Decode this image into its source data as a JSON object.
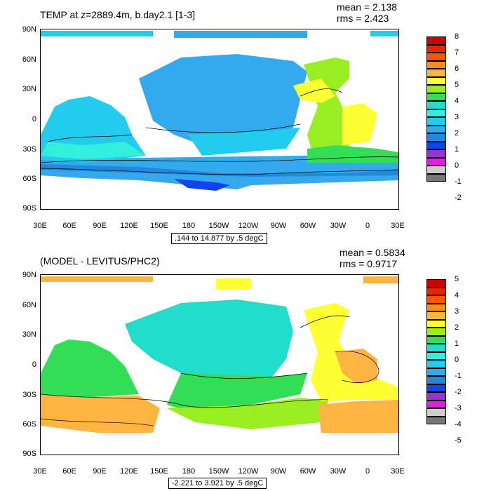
{
  "panels": [
    {
      "title": "TEMP at z=2889.4m, b.day2.1 [1-3]",
      "mean": "mean = 2.138",
      "rms": "rms = 2.423",
      "range_label": ".144 to 14.877 by .5 degC",
      "y_labels": [
        "90N",
        "60N",
        "30N",
        "0",
        "30S",
        "60S",
        "90S"
      ],
      "x_labels": [
        "30E",
        "60E",
        "90E",
        "120E",
        "150E",
        "180",
        "150W",
        "120W",
        "90W",
        "60W",
        "30W",
        "0",
        "30E"
      ],
      "legend_labels": [
        "8",
        "7",
        "6",
        "5",
        "4",
        "3",
        "2",
        "1",
        "0",
        "-1",
        "-2"
      ],
      "legend_colors": [
        "#cc0000",
        "#ee2200",
        "#ff5500",
        "#ff8c1a",
        "#ffb340",
        "#ffff33",
        "#99ee22",
        "#33dd55",
        "#22ddcc",
        "#33eedd",
        "#22ccee",
        "#33aaee",
        "#2288dd",
        "#1144ee",
        "#9933cc",
        "#dd22dd",
        "#cccccc",
        "#777777"
      ]
    },
    {
      "title": "(MODEL - LEVITUS/PHC2)",
      "mean": "mean = 0.5834",
      "rms": "rms = 0.9717",
      "range_label": "-2.221 to 3.921 by .5 degC",
      "y_labels": [
        "90N",
        "60N",
        "30N",
        "0",
        "30S",
        "60S",
        "90S"
      ],
      "x_labels": [
        "30E",
        "60E",
        "90E",
        "120E",
        "150E",
        "180",
        "150W",
        "120W",
        "90W",
        "60W",
        "30W",
        "0",
        "30E"
      ],
      "legend_labels": [
        "5",
        "4",
        "3",
        "2",
        "1",
        "0",
        "-1",
        "-2",
        "-3",
        "-4",
        "-5"
      ],
      "legend_colors": [
        "#cc0000",
        "#ee2200",
        "#ff5500",
        "#ff8c1a",
        "#ffb340",
        "#ffff33",
        "#99ee22",
        "#33dd55",
        "#22ddcc",
        "#33eedd",
        "#22ccee",
        "#33aaee",
        "#2288dd",
        "#1144ee",
        "#9933cc",
        "#dd22dd",
        "#cccccc",
        "#777777"
      ]
    }
  ]
}
